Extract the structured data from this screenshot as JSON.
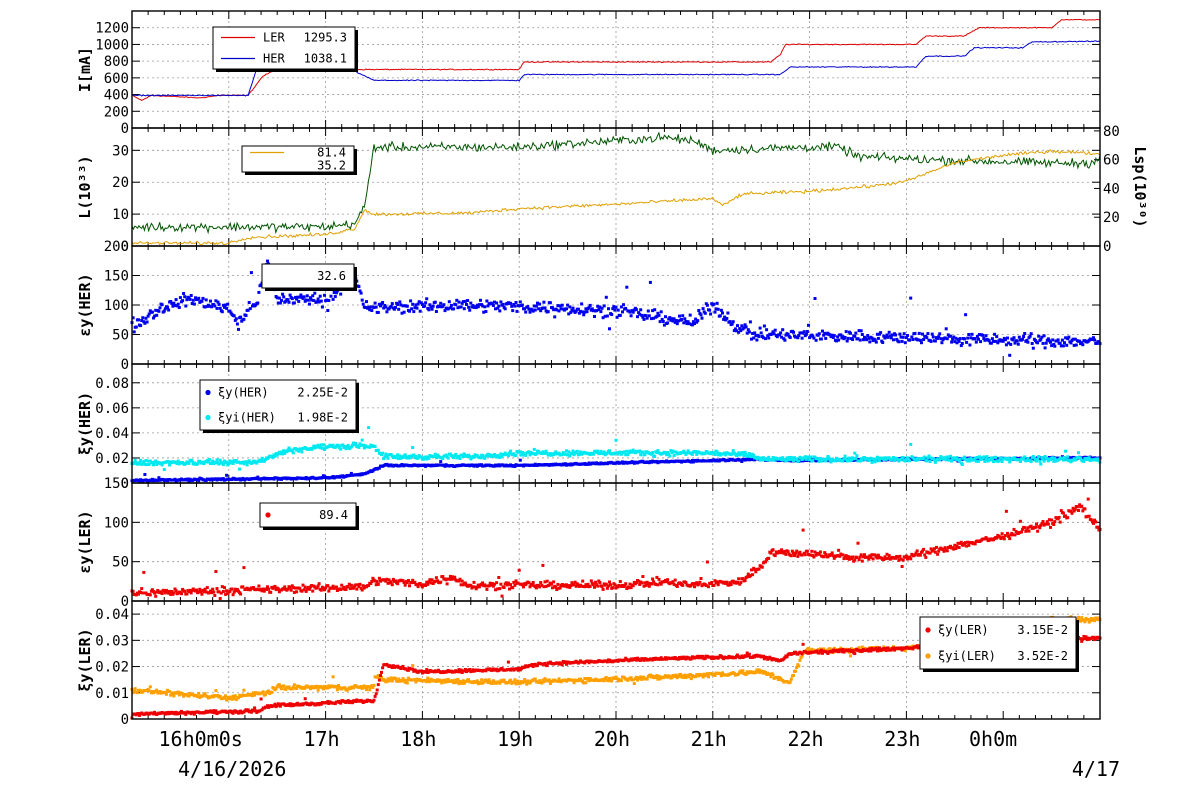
{
  "chart_data": [
    {
      "id": "p1",
      "type": "line",
      "ylabel": "I[mA]",
      "yticks": [
        0,
        200,
        400,
        600,
        800,
        1000,
        1200
      ],
      "ylim": [
        0,
        1400
      ],
      "legend": [
        {
          "label": "LER",
          "value": "1295.3",
          "color": "#dd0000",
          "mark": "line"
        },
        {
          "label": "HER",
          "value": "1038.1",
          "color": "#0000cc",
          "mark": "line"
        }
      ],
      "series": [
        {
          "name": "LER",
          "color": "#dd0000",
          "style": "line",
          "noise": 5,
          "points": [
            [
              0,
              390
            ],
            [
              0.1,
              330
            ],
            [
              0.2,
              390
            ],
            [
              0.7,
              360
            ],
            [
              0.9,
              390
            ],
            [
              1.2,
              390
            ],
            [
              1.35,
              620
            ],
            [
              1.6,
              760
            ],
            [
              2.1,
              760
            ],
            [
              2.3,
              700
            ],
            [
              4.0,
              700
            ],
            [
              4.05,
              790
            ],
            [
              6.6,
              790
            ],
            [
              6.7,
              880
            ],
            [
              6.75,
              1000
            ],
            [
              8.1,
              1000
            ],
            [
              8.2,
              1100
            ],
            [
              8.6,
              1100
            ],
            [
              8.75,
              1200
            ],
            [
              9.5,
              1200
            ],
            [
              9.6,
              1295
            ],
            [
              10,
              1295
            ]
          ]
        },
        {
          "name": "HER",
          "color": "#0000cc",
          "style": "line",
          "noise": 5,
          "points": [
            [
              0,
              390
            ],
            [
              1.2,
              390
            ],
            [
              1.3,
              750
            ],
            [
              1.5,
              780
            ],
            [
              2.1,
              790
            ],
            [
              2.5,
              570
            ],
            [
              4.0,
              570
            ],
            [
              4.05,
              640
            ],
            [
              6.7,
              640
            ],
            [
              6.8,
              730
            ],
            [
              8.1,
              730
            ],
            [
              8.2,
              860
            ],
            [
              8.6,
              860
            ],
            [
              8.7,
              960
            ],
            [
              9.2,
              960
            ],
            [
              9.3,
              1030
            ],
            [
              10,
              1038
            ]
          ]
        }
      ]
    },
    {
      "id": "p2",
      "type": "line",
      "ylabel": "L(10³³)",
      "ylabel_right": "Lsp(10³⁰)",
      "yticks": [
        0,
        10,
        20,
        30
      ],
      "ylim": [
        0,
        37
      ],
      "yticks_right": [
        0,
        20,
        40,
        60,
        80
      ],
      "ylim_right": [
        0,
        82
      ],
      "legend": [
        {
          "label": "",
          "value": "81.4",
          "color": "#e0a000",
          "mark": "line"
        },
        {
          "label": "",
          "value": "35.2",
          "color": "#005500",
          "mark": "none"
        }
      ],
      "series": [
        {
          "name": "L",
          "color": "#005500",
          "style": "line",
          "noise": 1.2,
          "points": [
            [
              0,
              6
            ],
            [
              1.0,
              6
            ],
            [
              2.0,
              6
            ],
            [
              2.3,
              7
            ],
            [
              2.4,
              12
            ],
            [
              2.5,
              31
            ],
            [
              4.0,
              31
            ],
            [
              5.0,
              33
            ],
            [
              5.5,
              34
            ],
            [
              5.8,
              33
            ],
            [
              6.0,
              30
            ],
            [
              7.0,
              31
            ],
            [
              7.3,
              31
            ],
            [
              7.5,
              28
            ],
            [
              8.3,
              27
            ],
            [
              9.5,
              26
            ],
            [
              9.9,
              26
            ],
            [
              10,
              28
            ]
          ]
        },
        {
          "name": "Lsp",
          "color": "#e0a000",
          "style": "line",
          "noise": 1.0,
          "axis": "right",
          "points": [
            [
              0,
              2
            ],
            [
              1.0,
              2
            ],
            [
              1.2,
              6
            ],
            [
              2.0,
              8
            ],
            [
              2.3,
              12
            ],
            [
              2.4,
              25
            ],
            [
              2.5,
              22
            ],
            [
              3.5,
              23
            ],
            [
              4.0,
              26
            ],
            [
              5.0,
              29
            ],
            [
              6.0,
              33
            ],
            [
              6.1,
              28
            ],
            [
              6.3,
              36
            ],
            [
              7.0,
              38
            ],
            [
              7.7,
              42
            ],
            [
              8.0,
              45
            ],
            [
              8.5,
              58
            ],
            [
              9.0,
              63
            ],
            [
              9.5,
              66
            ],
            [
              10,
              64
            ]
          ]
        }
      ]
    },
    {
      "id": "p3",
      "type": "scatter",
      "ylabel": "εy(HER)",
      "yticks": [
        0,
        50,
        100,
        150,
        200
      ],
      "ylim": [
        0,
        200
      ],
      "legend": [
        {
          "label": "",
          "value": "32.6",
          "color": "#0000ee",
          "mark": "none"
        }
      ],
      "series": [
        {
          "name": "εy(HER)",
          "color": "#0000ee",
          "style": "scatter",
          "noise": 9,
          "points": [
            [
              0,
              65
            ],
            [
              0.3,
              95
            ],
            [
              0.6,
              110
            ],
            [
              1.0,
              95
            ],
            [
              1.1,
              70
            ],
            [
              1.3,
              110
            ],
            [
              1.4,
              175
            ],
            [
              1.5,
              110
            ],
            [
              2.0,
              110
            ],
            [
              2.3,
              150
            ],
            [
              2.4,
              95
            ],
            [
              3.5,
              100
            ],
            [
              4.5,
              95
            ],
            [
              5.0,
              90
            ],
            [
              5.5,
              78
            ],
            [
              5.8,
              70
            ],
            [
              6.0,
              100
            ],
            [
              6.2,
              70
            ],
            [
              6.4,
              50
            ],
            [
              7.0,
              48
            ],
            [
              8.0,
              45
            ],
            [
              9.0,
              40
            ],
            [
              10,
              38
            ]
          ]
        }
      ]
    },
    {
      "id": "p4",
      "type": "scatter",
      "ylabel": "ξy(HER)",
      "yticks": [
        0,
        0.02,
        0.04,
        0.06,
        0.08
      ],
      "ylim": [
        0,
        0.095
      ],
      "legend": [
        {
          "label": "ξy(HER)",
          "value": "2.25E-2",
          "color": "#0000ee",
          "mark": "dot"
        },
        {
          "label": "ξyi(HER)",
          "value": "1.98E-2",
          "color": "#00e8f0",
          "mark": "dot"
        }
      ],
      "series": [
        {
          "name": "ξy(HER)",
          "color": "#0000ee",
          "style": "scatter",
          "noise": 0.0006,
          "points": [
            [
              0,
              0.002
            ],
            [
              2.0,
              0.004
            ],
            [
              2.4,
              0.007
            ],
            [
              2.6,
              0.014
            ],
            [
              4.0,
              0.014
            ],
            [
              5.0,
              0.016
            ],
            [
              6.0,
              0.018
            ],
            [
              6.4,
              0.019
            ],
            [
              6.8,
              0.018
            ],
            [
              8.0,
              0.019
            ],
            [
              10,
              0.02
            ]
          ]
        },
        {
          "name": "ξyi(HER)",
          "color": "#00e8f0",
          "style": "scatter",
          "noise": 0.0018,
          "points": [
            [
              0,
              0.016
            ],
            [
              1.3,
              0.017
            ],
            [
              1.6,
              0.026
            ],
            [
              2.0,
              0.029
            ],
            [
              2.5,
              0.03
            ],
            [
              2.6,
              0.021
            ],
            [
              3.5,
              0.021
            ],
            [
              4.0,
              0.024
            ],
            [
              6.0,
              0.024
            ],
            [
              6.4,
              0.022
            ],
            [
              6.5,
              0.019
            ],
            [
              8.0,
              0.019
            ],
            [
              10,
              0.019
            ]
          ]
        }
      ]
    },
    {
      "id": "p5",
      "type": "scatter",
      "ylabel": "εy(LER)",
      "yticks": [
        0,
        50,
        100,
        150
      ],
      "ylim": [
        0,
        150
      ],
      "legend": [
        {
          "label": "",
          "value": "89.4",
          "color": "#ee0000",
          "mark": "dot"
        }
      ],
      "series": [
        {
          "name": "εy(LER)",
          "color": "#ee0000",
          "style": "scatter",
          "noise": 4,
          "points": [
            [
              0,
              10
            ],
            [
              2.4,
              18
            ],
            [
              2.5,
              26
            ],
            [
              3.0,
              22
            ],
            [
              3.3,
              30
            ],
            [
              3.5,
              20
            ],
            [
              5.0,
              20
            ],
            [
              5.5,
              24
            ],
            [
              5.8,
              20
            ],
            [
              6.0,
              22
            ],
            [
              6.3,
              25
            ],
            [
              6.5,
              45
            ],
            [
              6.6,
              62
            ],
            [
              7.0,
              60
            ],
            [
              7.5,
              55
            ],
            [
              8.0,
              55
            ],
            [
              8.5,
              70
            ],
            [
              9.0,
              82
            ],
            [
              9.5,
              100
            ],
            [
              9.8,
              120
            ],
            [
              10,
              90
            ]
          ]
        }
      ]
    },
    {
      "id": "p6",
      "type": "scatter",
      "ylabel": "ξy(LER)",
      "yticks": [
        0,
        0.01,
        0.02,
        0.03,
        0.04
      ],
      "ylim": [
        0,
        0.045
      ],
      "legend": [
        {
          "label": "ξy(LER)",
          "value": "3.15E-2",
          "color": "#ee0000",
          "mark": "dot"
        },
        {
          "label": "ξyi(LER)",
          "value": "3.52E-2",
          "color": "#ffa000",
          "mark": "dot"
        }
      ],
      "series": [
        {
          "name": "ξyi(LER)",
          "color": "#ffa000",
          "style": "scatter",
          "noise": 0.0008,
          "points": [
            [
              0,
              0.011
            ],
            [
              1.0,
              0.008
            ],
            [
              1.4,
              0.01
            ],
            [
              1.5,
              0.012
            ],
            [
              2.5,
              0.012
            ],
            [
              2.4,
              0.019
            ],
            [
              2.6,
              0.015
            ],
            [
              4.0,
              0.014
            ],
            [
              5.5,
              0.016
            ],
            [
              6.5,
              0.018
            ],
            [
              6.8,
              0.014
            ],
            [
              6.95,
              0.026
            ],
            [
              8.0,
              0.027
            ],
            [
              8.5,
              0.031
            ],
            [
              9.0,
              0.035
            ],
            [
              9.5,
              0.038
            ],
            [
              10,
              0.038
            ]
          ]
        },
        {
          "name": "ξy(LER)",
          "color": "#ee0000",
          "style": "scatter",
          "noise": 0.0005,
          "points": [
            [
              0,
              0.002
            ],
            [
              1.3,
              0.003
            ],
            [
              1.4,
              0.005
            ],
            [
              2.5,
              0.007
            ],
            [
              2.6,
              0.021
            ],
            [
              3.0,
              0.018
            ],
            [
              4.0,
              0.019
            ],
            [
              4.2,
              0.021
            ],
            [
              5.5,
              0.023
            ],
            [
              6.5,
              0.024
            ],
            [
              6.7,
              0.022
            ],
            [
              6.8,
              0.025
            ],
            [
              8.0,
              0.027
            ],
            [
              8.5,
              0.029
            ],
            [
              9.0,
              0.03
            ],
            [
              10,
              0.031
            ]
          ]
        }
      ]
    }
  ],
  "xaxis": {
    "range_hours": [
      15,
      25
    ],
    "ticks": [
      {
        "h": 16,
        "label": "16h0m0s"
      },
      {
        "h": 17,
        "label": "17h"
      },
      {
        "h": 18,
        "label": "18h"
      },
      {
        "h": 19,
        "label": "19h"
      },
      {
        "h": 20,
        "label": "20h"
      },
      {
        "h": 21,
        "label": "21h"
      },
      {
        "h": 22,
        "label": "22h"
      },
      {
        "h": 23,
        "label": "23h"
      },
      {
        "h": 24,
        "label": "0h0m"
      }
    ],
    "date_start": "4/16/2026",
    "date_end": "4/17"
  }
}
